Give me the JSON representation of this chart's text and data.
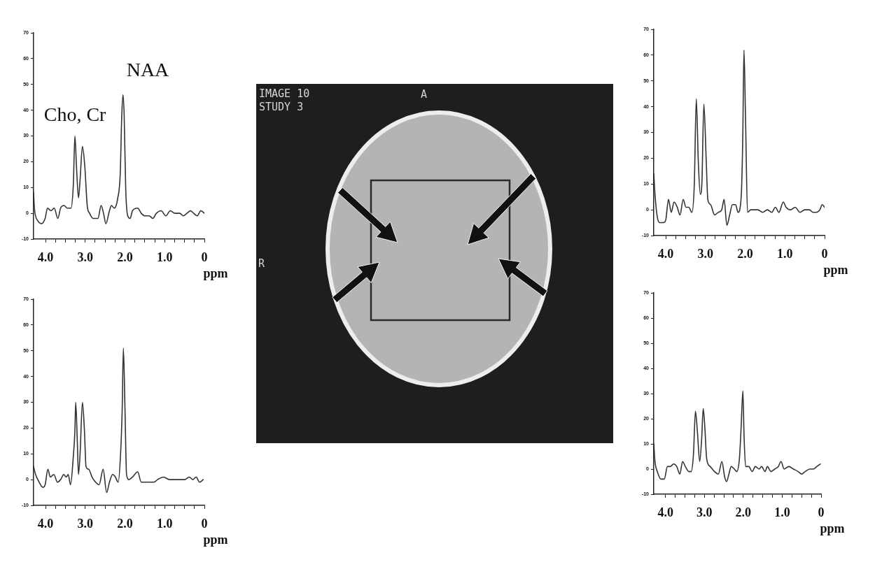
{
  "chart_data": [
    {
      "type": "line",
      "xlabel": "ppm",
      "annotations": [
        "NAA",
        "Cho, Cr"
      ],
      "x": [
        4.3,
        4.28,
        4.19,
        4.1,
        4.01,
        3.95,
        3.86,
        3.78,
        3.69,
        3.62,
        3.53,
        3.45,
        3.36,
        3.3,
        3.26,
        3.22,
        3.17,
        3.13,
        3.07,
        3.01,
        2.95,
        2.89,
        2.8,
        2.68,
        2.6,
        2.54,
        2.48,
        2.39,
        2.34,
        2.27,
        2.18,
        2.12,
        2.08,
        2.05,
        2.02,
        1.98,
        1.93,
        1.87,
        1.81,
        1.68,
        1.59,
        1.5,
        1.39,
        1.3,
        1.21,
        1.09,
        0.97,
        0.86,
        0.74,
        0.62,
        0.53,
        0.44,
        0.35,
        0.27,
        0.18,
        0.09,
        0
      ],
      "values": [
        8,
        2,
        -3,
        -4,
        -2,
        2,
        1,
        2,
        -2,
        2,
        3,
        2,
        2,
        11,
        30,
        18,
        6,
        13,
        26,
        18,
        3,
        0,
        -2,
        -2,
        3,
        0,
        -4,
        1,
        3,
        2,
        6,
        15,
        38,
        46,
        38,
        9,
        -1,
        -2,
        1,
        2,
        0,
        -1,
        -1,
        -2,
        0,
        1,
        -1,
        1,
        0,
        0,
        -1,
        0,
        1,
        0,
        -1,
        1,
        0
      ],
      "color": "#333333",
      "xlim": [
        4.3,
        0
      ],
      "ylim": [
        -10,
        70
      ],
      "xticks": [
        {
          "value": 4,
          "label": "4.0"
        },
        {
          "value": 3.75,
          "label": null
        },
        {
          "value": 3.5,
          "label": null
        },
        {
          "value": 3.25,
          "label": null
        },
        {
          "value": 3,
          "label": "3.0"
        },
        {
          "value": 2.75,
          "label": null
        },
        {
          "value": 2.5,
          "label": null
        },
        {
          "value": 2.25,
          "label": null
        },
        {
          "value": 2,
          "label": "2.0"
        },
        {
          "value": 1.75,
          "label": null
        },
        {
          "value": 1.5,
          "label": null
        },
        {
          "value": 1.25,
          "label": null
        },
        {
          "value": 1,
          "label": "1.0"
        },
        {
          "value": 0.75,
          "label": null
        },
        {
          "value": 0.5,
          "label": null
        },
        {
          "value": 0.25,
          "label": null
        },
        {
          "value": 0,
          "label": "0"
        }
      ],
      "yticks": [
        -10,
        0,
        10,
        20,
        30,
        40,
        50,
        60,
        70
      ]
    },
    {
      "type": "other",
      "annotations": [
        "IMAGE 10",
        "STUDY 3",
        "A",
        "R"
      ]
    },
    {
      "type": "line",
      "xlabel": "ppm",
      "x": [
        4.3,
        4.27,
        4.21,
        4.15,
        4.06,
        4.0,
        3.93,
        3.86,
        3.79,
        3.71,
        3.64,
        3.56,
        3.49,
        3.42,
        3.34,
        3.28,
        3.23,
        3.18,
        3.13,
        3.09,
        3.04,
        2.98,
        2.94,
        2.87,
        2.77,
        2.68,
        2.59,
        2.53,
        2.46,
        2.39,
        2.32,
        2.24,
        2.18,
        2.1,
        2.06,
        2.03,
        1.99,
        1.94,
        1.86,
        1.77,
        1.68,
        1.56,
        1.44,
        1.33,
        1.24,
        1.15,
        1.04,
        0.97,
        0.86,
        0.74,
        0.62,
        0.5,
        0.38,
        0.29,
        0.21,
        0.12,
        0.06,
        0
      ],
      "values": [
        14,
        6,
        -3,
        -5,
        -5,
        -4,
        4,
        -1,
        3,
        1,
        -2,
        4,
        1,
        1,
        -1,
        10,
        43,
        19,
        6,
        10,
        41,
        19,
        4,
        2,
        -2,
        -1,
        0,
        4,
        -6,
        -2,
        2,
        2,
        -1,
        5,
        28,
        62,
        35,
        -1,
        0,
        0,
        0,
        -1,
        0,
        -1,
        1,
        -1,
        3,
        1,
        0,
        1,
        -1,
        0,
        0,
        -1,
        -1,
        0,
        2,
        1
      ],
      "color": "#333333",
      "xlim": [
        4.3,
        0
      ],
      "ylim": [
        -10,
        70
      ],
      "xticks": [
        {
          "value": 4,
          "label": "4.0"
        },
        {
          "value": 3.75,
          "label": null
        },
        {
          "value": 3.5,
          "label": null
        },
        {
          "value": 3.25,
          "label": null
        },
        {
          "value": 3,
          "label": "3.0"
        },
        {
          "value": 2.75,
          "label": null
        },
        {
          "value": 2.5,
          "label": null
        },
        {
          "value": 2.25,
          "label": null
        },
        {
          "value": 2,
          "label": "2.0"
        },
        {
          "value": 1.75,
          "label": null
        },
        {
          "value": 1.5,
          "label": null
        },
        {
          "value": 1.25,
          "label": null
        },
        {
          "value": 1,
          "label": "1.0"
        },
        {
          "value": 0.75,
          "label": null
        },
        {
          "value": 0.5,
          "label": null
        },
        {
          "value": 0.25,
          "label": null
        },
        {
          "value": 0,
          "label": "0"
        }
      ],
      "yticks": [
        -10,
        0,
        10,
        20,
        30,
        40,
        50,
        60,
        70
      ]
    },
    {
      "type": "line",
      "xlabel": "ppm",
      "x": [
        4.3,
        4.25,
        4.16,
        4.07,
        4.01,
        3.94,
        3.88,
        3.79,
        3.7,
        3.62,
        3.54,
        3.48,
        3.43,
        3.37,
        3.3,
        3.26,
        3.24,
        3.2,
        3.17,
        3.13,
        3.07,
        3.02,
        2.98,
        2.91,
        2.83,
        2.74,
        2.65,
        2.55,
        2.46,
        2.39,
        2.31,
        2.24,
        2.17,
        2.11,
        2.07,
        2.04,
        2.0,
        1.96,
        1.9,
        1.81,
        1.68,
        1.59,
        1.5,
        1.39,
        1.27,
        1.18,
        1.03,
        0.88,
        0.74,
        0.59,
        0.5,
        0.38,
        0.29,
        0.21,
        0.12,
        0.03
      ],
      "values": [
        5,
        2,
        -1,
        -3,
        -2,
        4,
        1,
        2,
        -1,
        0,
        2,
        1,
        2,
        -2,
        9,
        19,
        30,
        15,
        2,
        10,
        30,
        19,
        5,
        4,
        1,
        -1,
        -2,
        4,
        -5,
        -1,
        2,
        1,
        -1,
        10,
        27,
        51,
        28,
        2,
        0,
        1,
        3,
        -1,
        -1,
        -1,
        -1,
        0,
        1,
        0,
        0,
        0,
        0,
        1,
        0,
        1,
        -1,
        0
      ],
      "color": "#333333",
      "xlim": [
        4.3,
        0
      ],
      "ylim": [
        -10,
        70
      ],
      "xticks": [
        {
          "value": 4,
          "label": "4.0"
        },
        {
          "value": 3.75,
          "label": null
        },
        {
          "value": 3.5,
          "label": null
        },
        {
          "value": 3.25,
          "label": null
        },
        {
          "value": 3,
          "label": "3.0"
        },
        {
          "value": 2.75,
          "label": null
        },
        {
          "value": 2.5,
          "label": null
        },
        {
          "value": 2.25,
          "label": null
        },
        {
          "value": 2,
          "label": "2.0"
        },
        {
          "value": 1.75,
          "label": null
        },
        {
          "value": 1.5,
          "label": null
        },
        {
          "value": 1.25,
          "label": null
        },
        {
          "value": 1,
          "label": "1.0"
        },
        {
          "value": 0.75,
          "label": null
        },
        {
          "value": 0.5,
          "label": null
        },
        {
          "value": 0.25,
          "label": null
        },
        {
          "value": 0,
          "label": "0"
        }
      ],
      "yticks": [
        -10,
        0,
        10,
        20,
        30,
        40,
        50,
        60,
        70
      ]
    },
    {
      "type": "line",
      "xlabel": "ppm",
      "x": [
        4.3,
        4.27,
        4.21,
        4.12,
        4.03,
        3.95,
        3.88,
        3.79,
        3.71,
        3.63,
        3.56,
        3.49,
        3.4,
        3.34,
        3.28,
        3.23,
        3.18,
        3.12,
        3.07,
        3.03,
        2.99,
        2.94,
        2.85,
        2.74,
        2.64,
        2.55,
        2.48,
        2.43,
        2.37,
        2.31,
        2.23,
        2.17,
        2.1,
        2.06,
        2.01,
        1.98,
        1.94,
        1.86,
        1.77,
        1.69,
        1.59,
        1.53,
        1.44,
        1.38,
        1.29,
        1.19,
        1.1,
        1.03,
        0.95,
        0.83,
        0.71,
        0.59,
        0.5,
        0.41,
        0.29,
        0.2,
        0.11,
        0.02
      ],
      "values": [
        10,
        3,
        -1,
        -4,
        -4,
        1,
        1,
        2,
        1,
        -2,
        3,
        1,
        -1,
        -1,
        6,
        23,
        15,
        3,
        12,
        24,
        17,
        4,
        1,
        -1,
        -2,
        3,
        -3,
        -5,
        -2,
        1,
        0,
        -1,
        4,
        15,
        31,
        13,
        1,
        1,
        -1,
        1,
        0,
        1,
        -1,
        1,
        -1,
        0,
        1,
        3,
        0,
        1,
        0,
        -1,
        -2,
        -1,
        0,
        0,
        1,
        2
      ],
      "color": "#333333",
      "xlim": [
        4.3,
        0
      ],
      "ylim": [
        -10,
        70
      ],
      "xticks": [
        {
          "value": 4,
          "label": "4.0"
        },
        {
          "value": 3.75,
          "label": null
        },
        {
          "value": 3.5,
          "label": null
        },
        {
          "value": 3.25,
          "label": null
        },
        {
          "value": 3,
          "label": "3.0"
        },
        {
          "value": 2.75,
          "label": null
        },
        {
          "value": 2.5,
          "label": null
        },
        {
          "value": 2.25,
          "label": null
        },
        {
          "value": 2,
          "label": "2.0"
        },
        {
          "value": 1.75,
          "label": null
        },
        {
          "value": 1.5,
          "label": null
        },
        {
          "value": 1.25,
          "label": null
        },
        {
          "value": 1,
          "label": "1.0"
        },
        {
          "value": 0.75,
          "label": null
        },
        {
          "value": 0.5,
          "label": null
        },
        {
          "value": 0.25,
          "label": null
        },
        {
          "value": 0,
          "label": "0"
        }
      ],
      "yticks": [
        -10,
        0,
        10,
        20,
        30,
        40,
        50,
        60,
        70
      ]
    }
  ]
}
